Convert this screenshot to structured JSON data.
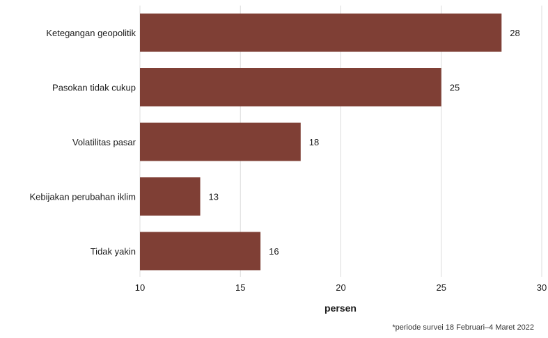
{
  "chart_data": {
    "type": "bar",
    "orientation": "horizontal",
    "categories": [
      "Ketegangan geopolitik",
      "Pasokan tidak cukup",
      "Volatilitas pasar",
      "Kebijakan perubahan iklim",
      "Tidak yakin"
    ],
    "values": [
      28,
      25,
      18,
      13,
      16
    ],
    "value_labels": [
      "28",
      "25",
      "18",
      "13",
      "16"
    ],
    "xlabel": "persen",
    "ylabel": "",
    "xlim": [
      10,
      30
    ],
    "x_ticks": [
      10,
      15,
      20,
      25,
      30
    ],
    "x_tick_labels": [
      "10",
      "15",
      "20",
      "25",
      "30"
    ],
    "grid": "vertical",
    "bar_color": "#7f3f35",
    "footnote": "*periode survei 18 Februari–4 Maret 2022"
  }
}
